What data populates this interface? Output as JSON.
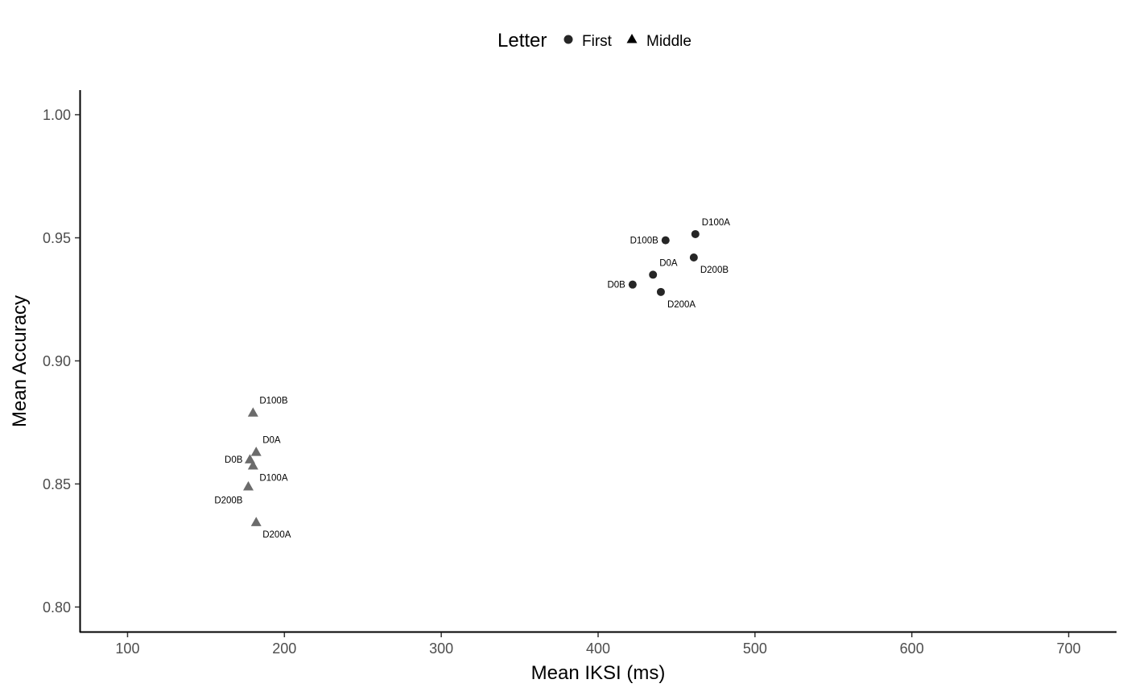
{
  "chart_data": {
    "type": "scatter",
    "title": "",
    "xlabel": "Mean IKSI (ms)",
    "ylabel": "Mean Accuracy",
    "xlim": [
      70,
      730
    ],
    "ylim": [
      0.79,
      1.01
    ],
    "x_ticks": [
      100,
      200,
      300,
      400,
      500,
      600,
      700
    ],
    "y_ticks": [
      0.8,
      0.85,
      0.9,
      0.95,
      1.0
    ],
    "x_tick_labels": [
      "100",
      "200",
      "300",
      "400",
      "500",
      "600",
      "700"
    ],
    "y_tick_labels": [
      "0.80",
      "0.85",
      "0.90",
      "0.95",
      "1.00"
    ],
    "grid": false,
    "legend": {
      "title": "Letter",
      "position": "top",
      "entries": [
        "First",
        "Middle"
      ]
    },
    "series": [
      {
        "name": "First",
        "shape": "circle",
        "color": "#262626",
        "points": [
          {
            "label": "D100A",
            "x": 462,
            "y": 0.9515,
            "label_pos": "above-right"
          },
          {
            "label": "D100B",
            "x": 443,
            "y": 0.949,
            "label_pos": "left"
          },
          {
            "label": "D200B",
            "x": 461,
            "y": 0.942,
            "label_pos": "below-right"
          },
          {
            "label": "D0A",
            "x": 435,
            "y": 0.935,
            "label_pos": "above-right"
          },
          {
            "label": "D0B",
            "x": 422,
            "y": 0.931,
            "label_pos": "left"
          },
          {
            "label": "D200A",
            "x": 440,
            "y": 0.928,
            "label_pos": "below-right"
          }
        ]
      },
      {
        "name": "Middle",
        "shape": "triangle",
        "color": "#6b6b6b",
        "points": [
          {
            "label": "D100B",
            "x": 180,
            "y": 0.879,
            "label_pos": "above-right"
          },
          {
            "label": "D0A",
            "x": 182,
            "y": 0.863,
            "label_pos": "above-right"
          },
          {
            "label": "D0B",
            "x": 178,
            "y": 0.86,
            "label_pos": "left"
          },
          {
            "label": "D100A",
            "x": 180,
            "y": 0.8575,
            "label_pos": "below-right"
          },
          {
            "label": "D200B",
            "x": 177,
            "y": 0.849,
            "label_pos": "below-left"
          },
          {
            "label": "D200A",
            "x": 182,
            "y": 0.8345,
            "label_pos": "below-right"
          }
        ]
      }
    ]
  }
}
